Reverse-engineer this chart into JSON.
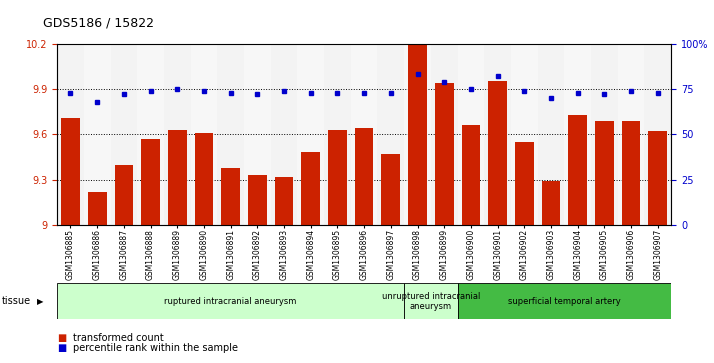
{
  "title": "GDS5186 / 15822",
  "samples": [
    "GSM1306885",
    "GSM1306886",
    "GSM1306887",
    "GSM1306888",
    "GSM1306889",
    "GSM1306890",
    "GSM1306891",
    "GSM1306892",
    "GSM1306893",
    "GSM1306894",
    "GSM1306895",
    "GSM1306896",
    "GSM1306897",
    "GSM1306898",
    "GSM1306899",
    "GSM1306900",
    "GSM1306901",
    "GSM1306902",
    "GSM1306903",
    "GSM1306904",
    "GSM1306905",
    "GSM1306906",
    "GSM1306907"
  ],
  "bar_values": [
    9.71,
    9.22,
    9.4,
    9.57,
    9.63,
    9.61,
    9.38,
    9.33,
    9.32,
    9.48,
    9.63,
    9.64,
    9.47,
    10.2,
    9.94,
    9.66,
    9.95,
    9.55,
    9.29,
    9.73,
    9.69,
    9.69,
    9.62
  ],
  "percentile_values": [
    73,
    68,
    72,
    74,
    75,
    74,
    73,
    72,
    74,
    73,
    73,
    73,
    73,
    83,
    79,
    75,
    82,
    74,
    70,
    73,
    72,
    74,
    73
  ],
  "bar_color": "#cc2200",
  "dot_color": "#0000cc",
  "ylim_left": [
    9.0,
    10.2
  ],
  "ylim_right": [
    0,
    100
  ],
  "yticks_left": [
    9.0,
    9.3,
    9.6,
    9.9,
    10.2
  ],
  "ytick_labels_left": [
    "9",
    "9.3",
    "9.6",
    "9.9",
    "10.2"
  ],
  "yticks_right": [
    0,
    25,
    50,
    75,
    100
  ],
  "ytick_labels_right": [
    "0",
    "25",
    "50",
    "75",
    "100%"
  ],
  "grid_values": [
    9.3,
    9.6,
    9.9
  ],
  "tissue_groups": [
    {
      "label": "ruptured intracranial aneurysm",
      "start": 0,
      "end": 13,
      "color": "#ccffcc"
    },
    {
      "label": "unruptured intracranial\naneurysm",
      "start": 13,
      "end": 15,
      "color": "#ccffcc"
    },
    {
      "label": "superficial temporal artery",
      "start": 15,
      "end": 23,
      "color": "#44bb44"
    }
  ],
  "legend_items": [
    {
      "label": "transformed count",
      "color": "#cc2200"
    },
    {
      "label": "percentile rank within the sample",
      "color": "#0000cc"
    }
  ],
  "plot_bg_color": "#ffffff"
}
